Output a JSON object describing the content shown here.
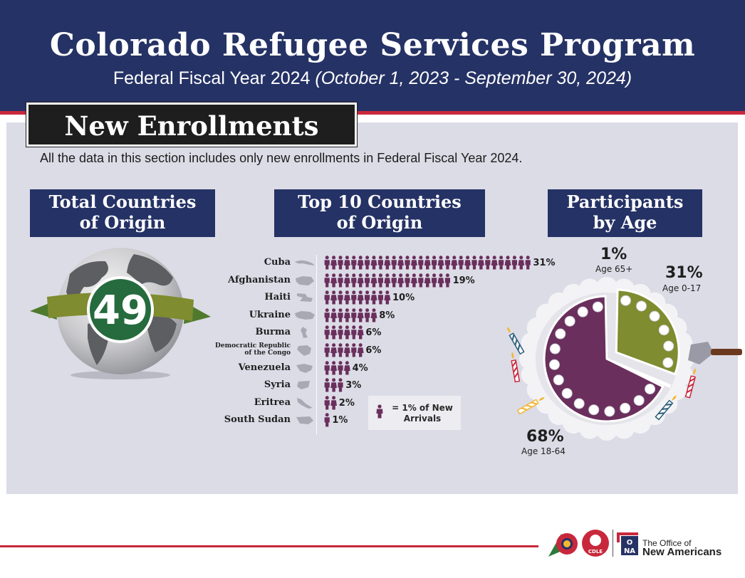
{
  "header": {
    "title": "Colorado Refugee Services Program",
    "subtitle_plain": "Federal Fiscal Year 2024 ",
    "subtitle_italic": "(October 1, 2023 - September 30, 2024)"
  },
  "section": {
    "title": "New Enrollments",
    "note": "All the data in this section includes only new enrollments in Federal Fiscal Year 2024."
  },
  "total_countries": {
    "heading_line1": "Total Countries",
    "heading_line2": "of Origin",
    "value": "49"
  },
  "chart_data": [
    {
      "type": "bar",
      "title": "Top 10 Countries of Origin",
      "title_line1": "Top 10 Countries",
      "title_line2": "of Origin",
      "unit_icon": "person-icon",
      "legend": "= 1% of New Arrivals",
      "categories": [
        "Cuba",
        "Afghanistan",
        "Haiti",
        "Ukraine",
        "Burma",
        "Democratic Republic of the Congo",
        "Venezuela",
        "Syria",
        "Eritrea",
        "South Sudan"
      ],
      "values": [
        31,
        19,
        10,
        8,
        6,
        6,
        4,
        3,
        2,
        1
      ],
      "value_labels": [
        "31%",
        "19%",
        "10%",
        "8%",
        "6%",
        "6%",
        "4%",
        "3%",
        "2%",
        "1%"
      ]
    },
    {
      "type": "pie",
      "title": "Participants by Age",
      "title_line1": "Participants",
      "title_line2": "by Age",
      "slices": [
        {
          "label": "Age 0-17",
          "value": 31,
          "value_label": "31%",
          "color": "#7f8c2f"
        },
        {
          "label": "Age 65+",
          "value": 1,
          "value_label": "1%",
          "color": "#1f5a3a"
        },
        {
          "label": "Age 18-64",
          "value": 68,
          "value_label": "68%",
          "color": "#6a2f5c"
        }
      ]
    }
  ],
  "colors": {
    "navy": "#253265",
    "red": "#c8283c",
    "panel": "#dcdce7",
    "person": "#6a2f5c",
    "globe_badge": "#256b3d",
    "ribbon": "#7f8c2f"
  },
  "footer": {
    "ona_line1": "The Office of",
    "ona_line2": "New Americans",
    "cdle_label": "CDLE",
    "ona_mark_o": "O",
    "ona_mark_na": "NA"
  }
}
